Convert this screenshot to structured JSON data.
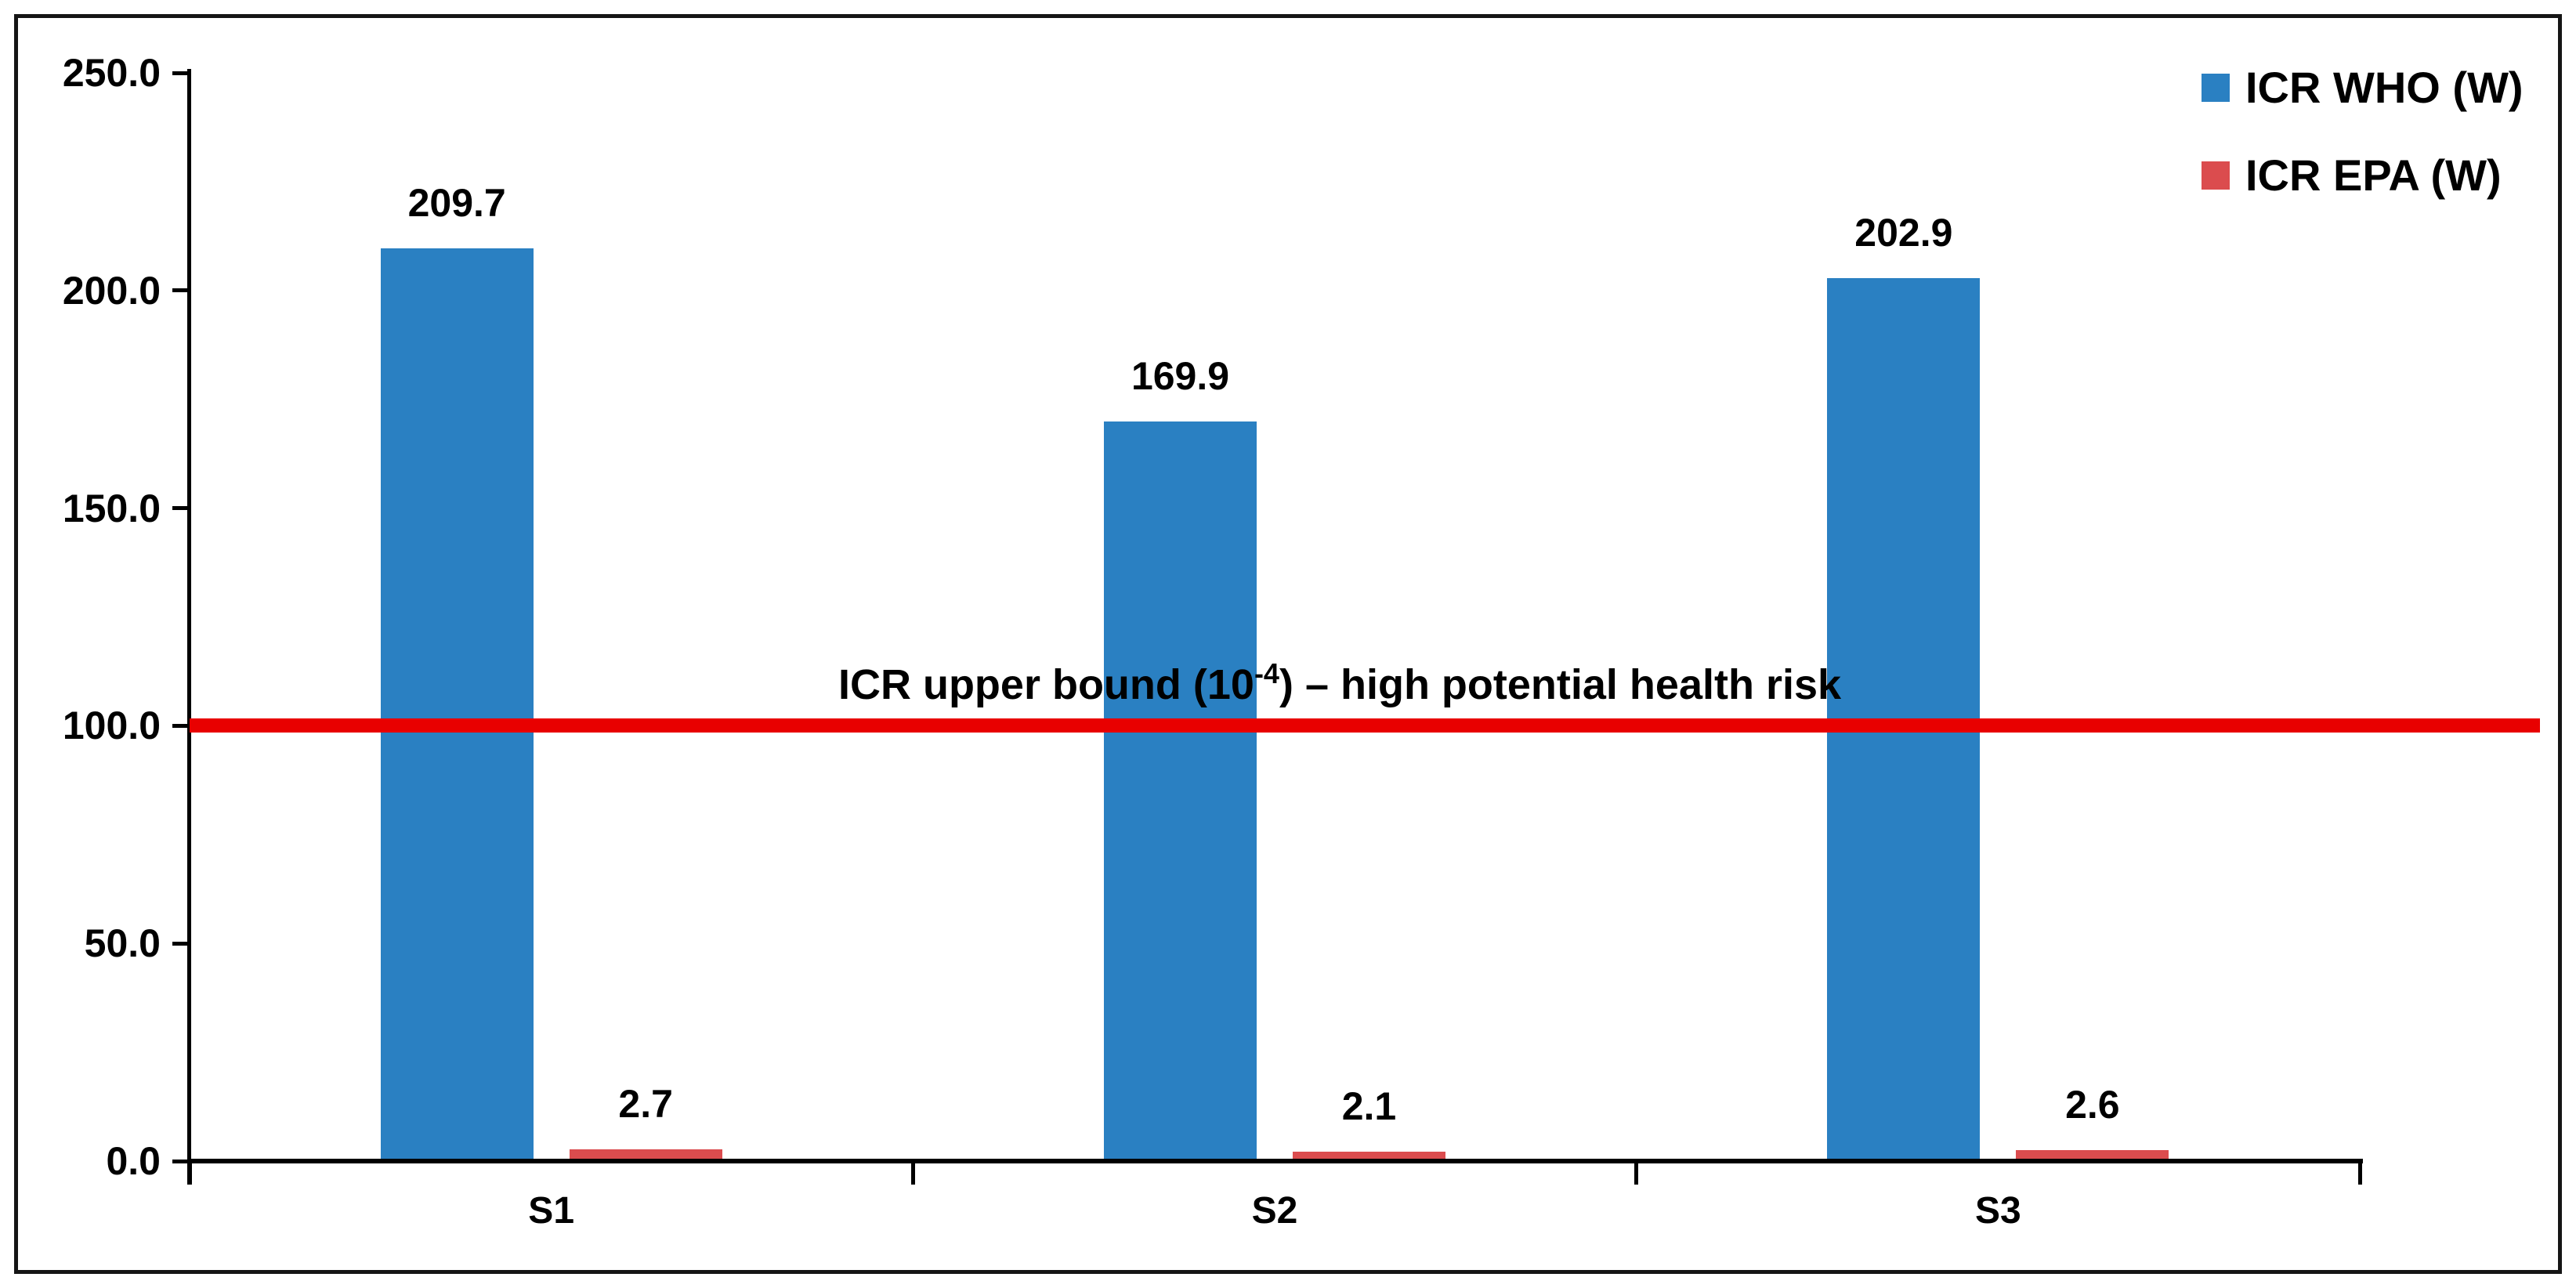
{
  "chart_data": {
    "type": "bar",
    "categories": [
      "S1",
      "S2",
      "S3"
    ],
    "series": [
      {
        "name": "ICR WHO (W)",
        "color": "#2A80C2",
        "values": [
          209.7,
          169.9,
          202.9
        ]
      },
      {
        "name": "ICR EPA (W)",
        "color": "#DB4C4E",
        "values": [
          2.7,
          2.1,
          2.6
        ]
      }
    ],
    "data_labels": {
      "ICR WHO (W)": [
        "209.7",
        "169.9",
        "202.9"
      ],
      "ICR EPA (W)": [
        "2.7",
        "2.1",
        "2.6"
      ]
    },
    "title": "",
    "xlabel": "",
    "ylabel": "",
    "ylim": [
      0,
      250
    ],
    "y_tick_values": [
      0,
      50,
      100,
      150,
      200,
      250
    ],
    "y_tick_labels": [
      "0.0",
      "50.0",
      "100.0",
      "150.0",
      "200.0",
      "250.0"
    ],
    "grid": false,
    "legend_position": "top-right",
    "threshold_line": {
      "value": 100,
      "color": "#E80000",
      "label_prefix": "ICR upper bound (10",
      "label_sup": "-4",
      "label_suffix": ") – high potential health risk"
    },
    "frame_border_color": "#151515",
    "axis_color": "#000000",
    "text_color": "#000000"
  }
}
